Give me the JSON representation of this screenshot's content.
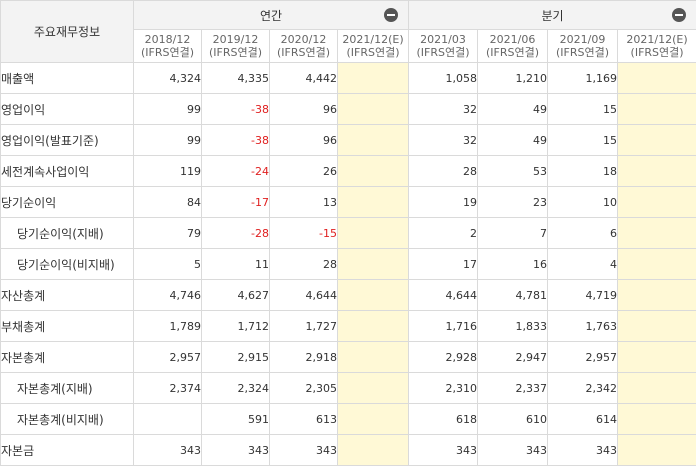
{
  "header": {
    "corner": "주요재무정보",
    "annual": "연간",
    "quarterly": "분기",
    "annual_periods": [
      {
        "period": "2018/12",
        "basis": "(IFRS연결)"
      },
      {
        "period": "2019/12",
        "basis": "(IFRS연결)"
      },
      {
        "period": "2020/12",
        "basis": "(IFRS연결)"
      },
      {
        "period": "2021/12(E)",
        "basis": "(IFRS연결)"
      }
    ],
    "quarter_periods": [
      {
        "period": "2021/03",
        "basis": "(IFRS연결)"
      },
      {
        "period": "2021/06",
        "basis": "(IFRS연결)"
      },
      {
        "period": "2021/09",
        "basis": "(IFRS연결)"
      },
      {
        "period": "2021/12(E)",
        "basis": "(IFRS연결)"
      }
    ]
  },
  "rows": [
    {
      "label": "매출액",
      "annual": [
        "4,324",
        "4,335",
        "4,442",
        ""
      ],
      "quarter": [
        "1,058",
        "1,210",
        "1,169",
        ""
      ]
    },
    {
      "label": "영업이익",
      "annual": [
        "99",
        "-38",
        "96",
        ""
      ],
      "quarter": [
        "32",
        "49",
        "15",
        ""
      ]
    },
    {
      "label": "영업이익(발표기준)",
      "annual": [
        "99",
        "-38",
        "96",
        ""
      ],
      "quarter": [
        "32",
        "49",
        "15",
        ""
      ]
    },
    {
      "label": "세전계속사업이익",
      "annual": [
        "119",
        "-24",
        "26",
        ""
      ],
      "quarter": [
        "28",
        "53",
        "18",
        ""
      ]
    },
    {
      "label": "당기순이익",
      "annual": [
        "84",
        "-17",
        "13",
        ""
      ],
      "quarter": [
        "19",
        "23",
        "10",
        ""
      ]
    },
    {
      "label": "당기순이익(지배)",
      "annual": [
        "79",
        "-28",
        "-15",
        ""
      ],
      "quarter": [
        "2",
        "7",
        "6",
        ""
      ]
    },
    {
      "label": "당기순이익(비지배)",
      "annual": [
        "5",
        "11",
        "28",
        ""
      ],
      "quarter": [
        "17",
        "16",
        "4",
        ""
      ]
    },
    {
      "label": "자산총계",
      "annual": [
        "4,746",
        "4,627",
        "4,644",
        ""
      ],
      "quarter": [
        "4,644",
        "4,781",
        "4,719",
        ""
      ]
    },
    {
      "label": "부채총계",
      "annual": [
        "1,789",
        "1,712",
        "1,727",
        ""
      ],
      "quarter": [
        "1,716",
        "1,833",
        "1,763",
        ""
      ]
    },
    {
      "label": "자본총계",
      "annual": [
        "2,957",
        "2,915",
        "2,918",
        ""
      ],
      "quarter": [
        "2,928",
        "2,947",
        "2,957",
        ""
      ]
    },
    {
      "label": "자본총계(지배)",
      "annual": [
        "2,374",
        "2,324",
        "2,305",
        ""
      ],
      "quarter": [
        "2,310",
        "2,337",
        "2,342",
        ""
      ]
    },
    {
      "label": "자본총계(비지배)",
      "annual": [
        "",
        "591",
        "613",
        ""
      ],
      "quarter": [
        "618",
        "610",
        "614",
        ""
      ]
    },
    {
      "label": "자본금",
      "annual": [
        "343",
        "343",
        "343",
        ""
      ],
      "quarter": [
        "343",
        "343",
        "343",
        ""
      ]
    }
  ]
}
